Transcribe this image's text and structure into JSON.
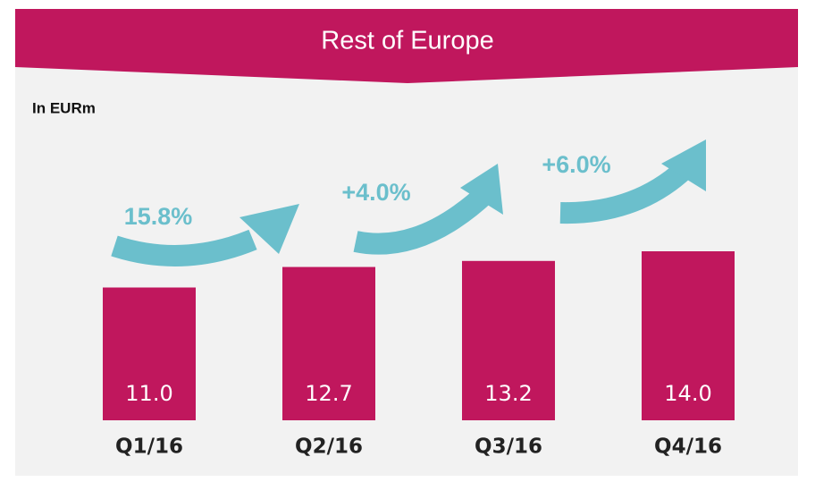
{
  "chart_data": {
    "type": "bar",
    "title": "Rest of Europe",
    "subtitle": "In EURm",
    "categories": [
      "Q1/16",
      "Q2/16",
      "Q3/16",
      "Q4/16"
    ],
    "values": [
      11.0,
      12.7,
      13.2,
      14.0
    ],
    "value_labels": [
      "11.0",
      "12.7",
      "13.2",
      "14.0"
    ],
    "color": "#c0175d",
    "annotations": [
      "15.8%",
      "+4.0%",
      "+6.0%"
    ]
  }
}
